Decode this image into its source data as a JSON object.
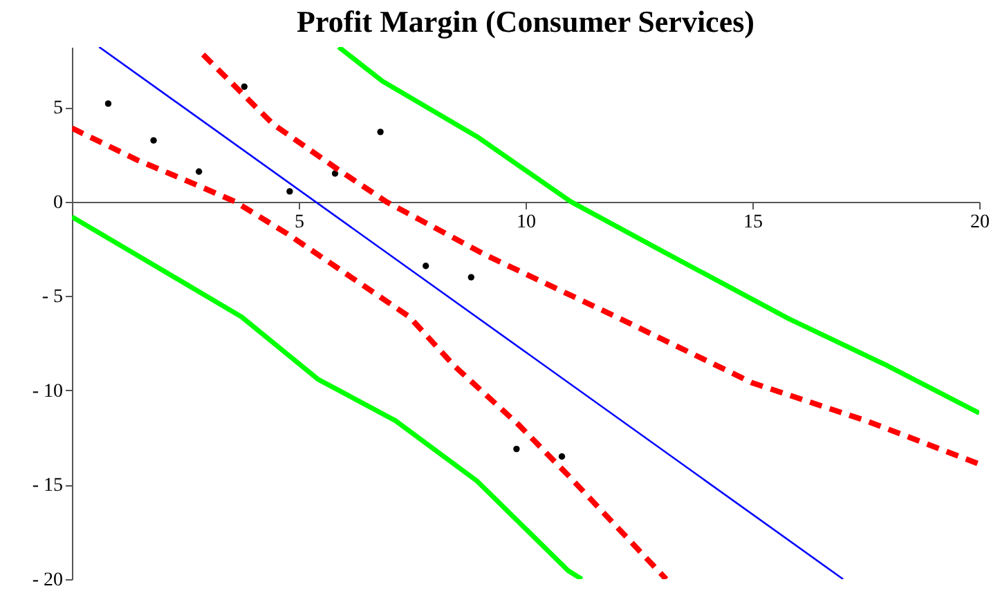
{
  "chart_data": {
    "type": "scatter",
    "title": "Profit Margin (Consumer Services)",
    "xlim": [
      0,
      20
    ],
    "ylim": [
      -20,
      8.2
    ],
    "xticks": [
      5,
      10,
      15,
      20
    ],
    "yticks": [
      {
        "value": -20,
        "label": "- 20"
      },
      {
        "value": -15,
        "label": "- 15"
      },
      {
        "value": -10,
        "label": "- 10"
      },
      {
        "value": -5,
        "label": "- 5"
      },
      0,
      5
    ],
    "grid": false,
    "series": [
      {
        "marker": "circle",
        "color": "#000000",
        "x": [
          0.8,
          1.8,
          2.8,
          3.8,
          4.8,
          5.8,
          6.8,
          7.8,
          8.8,
          9.8,
          10.8
        ],
        "values": [
          5.2,
          3.25,
          1.6,
          6.1,
          0.55,
          1.5,
          3.7,
          -3.4,
          -4.0,
          -13.1,
          -13.5
        ]
      },
      {
        "type": "line",
        "color": "#0000ff",
        "line_style": "solid",
        "x": [
          0.6,
          17
        ],
        "values": [
          8.2,
          -20
        ]
      },
      {
        "type": "line",
        "color": "#ff0000",
        "line_style": "dashed",
        "x": [
          0,
          1.45,
          2.74,
          3.6,
          4.75,
          7.44,
          8.43,
          9.84,
          10.94,
          13.1
        ],
        "values": [
          3.9,
          2.2,
          0.9,
          0,
          -1.7,
          -6.1,
          -8.7,
          -11.8,
          -14.5,
          -20
        ]
      },
      {
        "type": "line",
        "color": "#ff0000",
        "line_style": "dashed",
        "x": [
          2.89,
          4.44,
          5.84,
          6.93,
          9.14,
          12.0,
          15,
          17.5,
          20
        ],
        "values": [
          7.8,
          4.1,
          1.75,
          0,
          -2.85,
          -6.1,
          -9.6,
          -11.6,
          -13.9
        ]
      },
      {
        "type": "line",
        "color": "#00ff00",
        "line_style": "solid",
        "x": [
          5.88,
          6.84,
          8.93,
          11,
          13.0,
          15.8,
          17.9,
          20
        ],
        "values": [
          8.2,
          6.4,
          3.45,
          0,
          -2.6,
          -6.2,
          -8.6,
          -11.2
        ]
      },
      {
        "type": "line",
        "color": "#00ff00",
        "line_style": "solid",
        "x": [
          0,
          1.45,
          3.74,
          5.42,
          7.13,
          8.93,
          10.94,
          11.24
        ],
        "values": [
          -0.8,
          -2.85,
          -6.1,
          -9.4,
          -11.6,
          -14.8,
          -19.55,
          -20
        ]
      }
    ]
  }
}
